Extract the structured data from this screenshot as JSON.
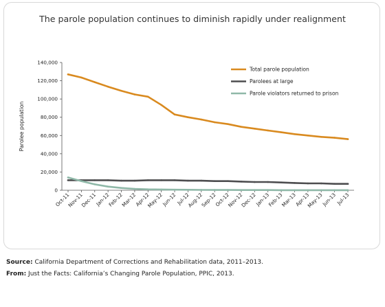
{
  "chart_data": {
    "type": "line",
    "title": "The parole population continues to diminish rapidly under realignment",
    "xlabel": "",
    "ylabel": "Parolee population",
    "ylim": [
      0,
      140000
    ],
    "yticks": [
      0,
      20000,
      40000,
      60000,
      80000,
      100000,
      120000,
      140000
    ],
    "ytick_labels": [
      "0",
      "20,000",
      "40,000",
      "60,000",
      "80,000",
      "100,000",
      "120,000",
      "140,000"
    ],
    "grid": false,
    "legend_position": "top-right",
    "x": [
      "Oct-11",
      "Nov-11",
      "Dec-11",
      "Jan-12",
      "Feb-12",
      "Mar-12",
      "Apr-12",
      "May-12",
      "Jun-12",
      "Jul-12",
      "Aug-12",
      "Sep-12",
      "Oct-12",
      "Nov-12",
      "Dec-12",
      "Jan-13",
      "Feb-13",
      "Mar-13",
      "Apr-13",
      "May-13",
      "Jun-13",
      "Jul-13"
    ],
    "series": [
      {
        "name": "Total parole population",
        "color": "#d98a1f",
        "values": [
          127000,
          123500,
          118500,
          113500,
          109000,
          105000,
          102500,
          93500,
          83000,
          80000,
          77500,
          74500,
          72500,
          69500,
          67500,
          65500,
          63500,
          61500,
          60000,
          58500,
          57500,
          56000
        ]
      },
      {
        "name": "Parolees at large",
        "color": "#4d4d4f",
        "values": [
          11000,
          11000,
          11000,
          11000,
          10500,
          10500,
          11000,
          11000,
          11000,
          10500,
          10500,
          10000,
          10000,
          9500,
          9000,
          9000,
          8500,
          8000,
          7500,
          7500,
          7000,
          7000
        ]
      },
      {
        "name": "Parole violators returned to prison",
        "color": "#8fb8a8",
        "values": [
          14000,
          10000,
          6500,
          4000,
          2500,
          1500,
          1000,
          800,
          600,
          500,
          400,
          300,
          300,
          200,
          200,
          200,
          100,
          100,
          100,
          100,
          100,
          100
        ]
      }
    ]
  },
  "source": {
    "label": "Source:",
    "text": "California Department of Corrections and Rehabilitation data, 2011–2013."
  },
  "from": {
    "label": "From:",
    "text": "Just the Facts: California’s Changing Parole Population, PPIC, 2013."
  }
}
